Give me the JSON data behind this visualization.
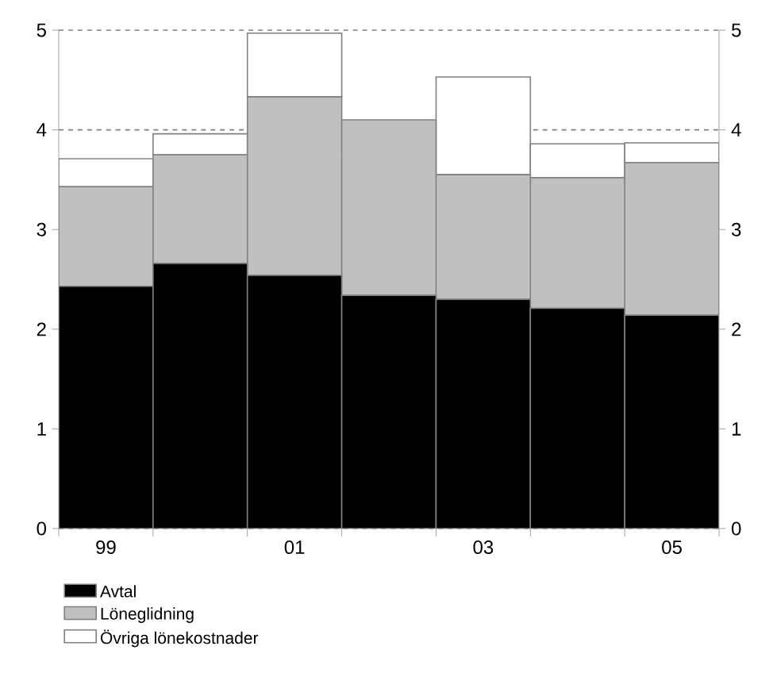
{
  "chart_data": {
    "type": "bar",
    "stacked": true,
    "categories": [
      "99",
      null,
      "01",
      null,
      "03",
      null,
      "05"
    ],
    "series": [
      {
        "name": "Avtal",
        "color": "#000000",
        "values": [
          2.43,
          2.66,
          2.54,
          2.34,
          2.3,
          2.21,
          2.14
        ]
      },
      {
        "name": "Löneglidning",
        "color": "#c0c0c0",
        "values": [
          1.0,
          1.09,
          1.79,
          1.76,
          1.25,
          1.31,
          1.53
        ]
      },
      {
        "name": "Övriga lönekostnader",
        "color": "#ffffff",
        "values": [
          0.28,
          0.21,
          0.64,
          0,
          0.98,
          0.34,
          0.2
        ]
      }
    ],
    "ylim": [
      0,
      5
    ],
    "yticks": [
      0,
      1,
      2,
      3,
      4,
      5
    ],
    "y2lim": [
      0,
      5
    ],
    "y2ticks": [
      0,
      1,
      2,
      3,
      4,
      5
    ],
    "grid": "y",
    "legend": "bottom"
  }
}
